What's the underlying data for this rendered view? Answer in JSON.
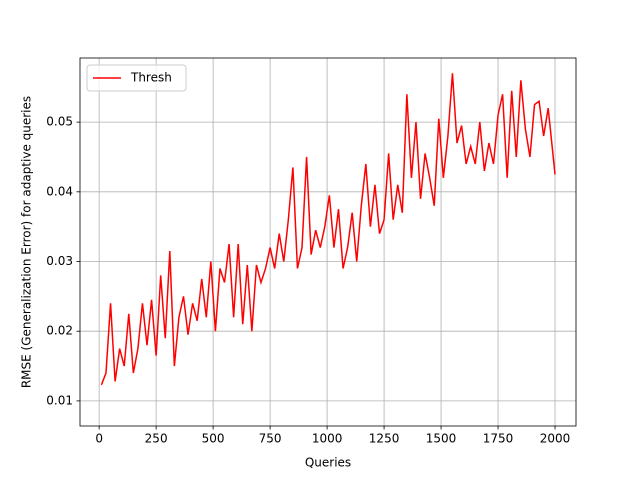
{
  "chart_data": {
    "type": "line",
    "xlabel": "Queries",
    "ylabel": "RMSE (Generalization Error) for adaptive queries",
    "x": [
      10,
      30,
      50,
      70,
      90,
      110,
      130,
      150,
      170,
      190,
      210,
      230,
      250,
      270,
      290,
      310,
      330,
      350,
      370,
      390,
      410,
      430,
      450,
      470,
      490,
      510,
      530,
      550,
      570,
      590,
      610,
      630,
      650,
      670,
      690,
      710,
      730,
      750,
      770,
      790,
      810,
      830,
      850,
      870,
      890,
      910,
      930,
      950,
      970,
      990,
      1010,
      1030,
      1050,
      1070,
      1090,
      1110,
      1130,
      1150,
      1170,
      1190,
      1210,
      1230,
      1250,
      1270,
      1290,
      1310,
      1330,
      1350,
      1370,
      1390,
      1410,
      1430,
      1450,
      1470,
      1490,
      1510,
      1530,
      1550,
      1570,
      1590,
      1610,
      1630,
      1650,
      1670,
      1690,
      1710,
      1730,
      1750,
      1770,
      1790,
      1810,
      1830,
      1850,
      1870,
      1890,
      1910,
      1930,
      1950,
      1970,
      2000
    ],
    "series": [
      {
        "name": "Thresh",
        "color": "#ff0000",
        "values": [
          0.0123,
          0.014,
          0.024,
          0.0128,
          0.0175,
          0.015,
          0.0225,
          0.014,
          0.0175,
          0.024,
          0.018,
          0.0245,
          0.0165,
          0.028,
          0.019,
          0.0315,
          0.015,
          0.022,
          0.025,
          0.0195,
          0.024,
          0.0215,
          0.0275,
          0.022,
          0.03,
          0.02,
          0.029,
          0.027,
          0.0325,
          0.022,
          0.0325,
          0.021,
          0.0295,
          0.02,
          0.0295,
          0.027,
          0.029,
          0.032,
          0.029,
          0.034,
          0.03,
          0.036,
          0.0435,
          0.029,
          0.032,
          0.045,
          0.031,
          0.0345,
          0.032,
          0.035,
          0.0395,
          0.032,
          0.0375,
          0.029,
          0.032,
          0.037,
          0.03,
          0.038,
          0.044,
          0.035,
          0.041,
          0.034,
          0.036,
          0.0455,
          0.036,
          0.041,
          0.037,
          0.054,
          0.042,
          0.05,
          0.039,
          0.0455,
          0.042,
          0.038,
          0.0505,
          0.042,
          0.048,
          0.057,
          0.047,
          0.0495,
          0.044,
          0.0465,
          0.044,
          0.05,
          0.043,
          0.047,
          0.044,
          0.051,
          0.054,
          0.042,
          0.0545,
          0.045,
          0.056,
          0.049,
          0.045,
          0.0525,
          0.053,
          0.048,
          0.052,
          0.0425
        ]
      }
    ],
    "xlim": [
      -84,
      2092
    ],
    "ylim": [
      0.0064,
      0.0592
    ],
    "xticks": [
      0,
      250,
      500,
      750,
      1000,
      1250,
      1500,
      1750,
      2000
    ],
    "yticks": [
      0.01,
      0.02,
      0.03,
      0.04,
      0.05
    ],
    "grid": true,
    "legend": "upper left"
  }
}
